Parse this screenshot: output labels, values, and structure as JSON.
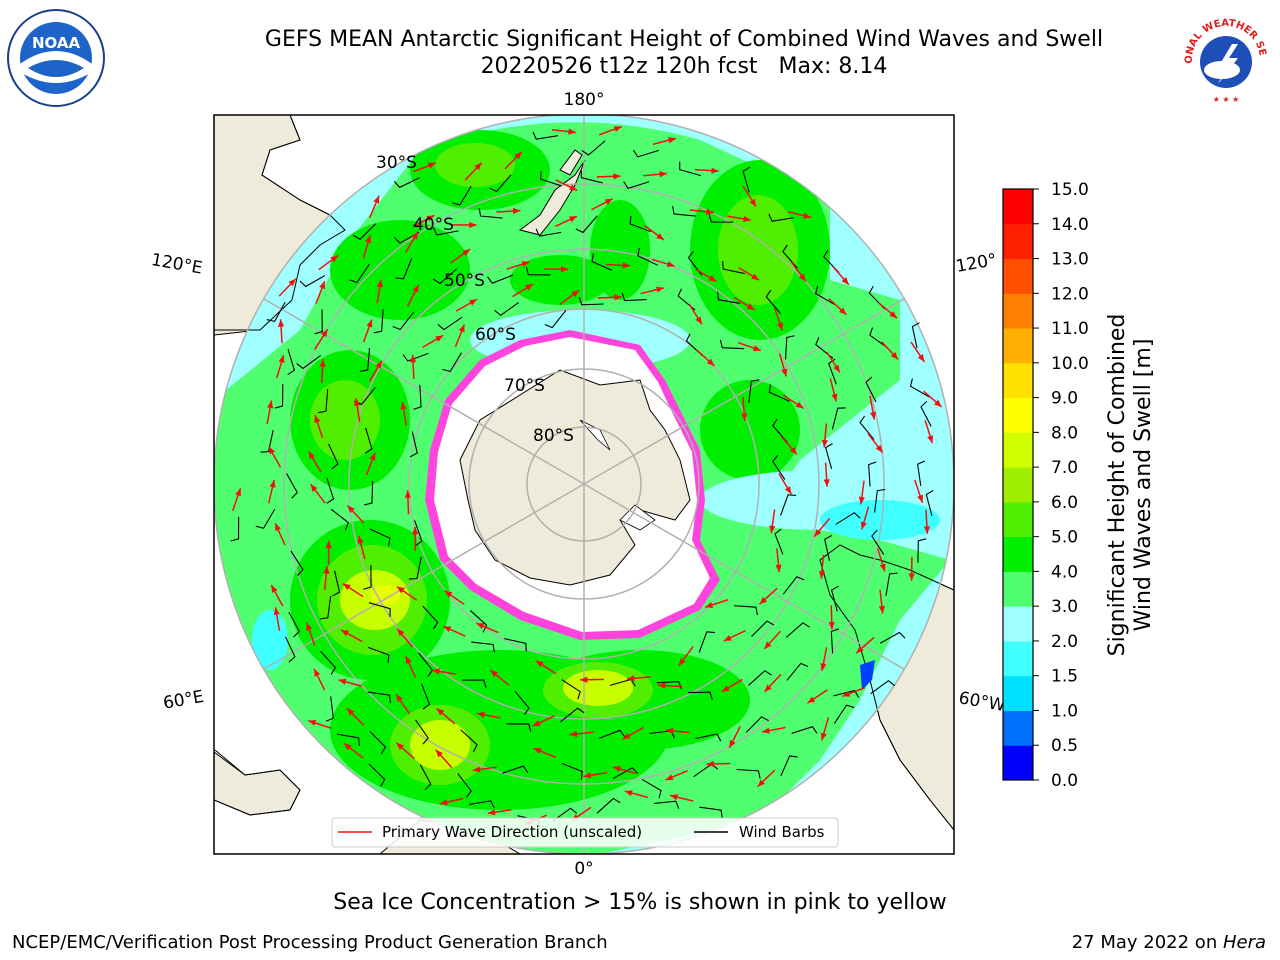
{
  "title": {
    "line1": "GEFS MEAN Antarctic Significant Height of Combined Wind Waves and Swell",
    "run": "20220526 t12z 120h fcst",
    "max_label": "Max: 8.14"
  },
  "map": {
    "projection": "south-polar-stereographic",
    "longitude_labels": [
      "180°",
      "120°E",
      "120°",
      "60°E",
      "60°W",
      "0°"
    ],
    "latitude_labels": [
      "30°S",
      "40°S",
      "50°S",
      "60°S",
      "70°S",
      "80°S"
    ],
    "colors": {
      "land": "#efebda",
      "ice_shelf": "#ffffff",
      "sea_ice_edge": "#ff44dd",
      "graticule": "#b0b0b0",
      "wave_arrow": "#ee1111",
      "wind_barb": "#000000"
    }
  },
  "legend": {
    "wave_direction": "Primary Wave Direction (unscaled)",
    "wind_barbs": "Wind Barbs"
  },
  "colorbar": {
    "label_line1": "Significant Height of Combined",
    "label_line2": "Wind Waves and Swell [m]",
    "ticks": [
      "0.0",
      "0.5",
      "1.0",
      "1.5",
      "2.0",
      "3.0",
      "4.0",
      "5.0",
      "6.0",
      "7.0",
      "8.0",
      "9.0",
      "10.0",
      "11.0",
      "12.0",
      "13.0",
      "14.0",
      "15.0"
    ],
    "colors": [
      "#0000ff",
      "#0070ff",
      "#00e0ff",
      "#40ffff",
      "#a0ffff",
      "#50ff70",
      "#00ee00",
      "#50ee00",
      "#a0ee00",
      "#d0ff00",
      "#ffff00",
      "#ffe000",
      "#ffb000",
      "#ff8000",
      "#ff5000",
      "#ff2000",
      "#ff0000"
    ]
  },
  "sea_ice_note": "Sea Ice Concentration > 15% is shown in pink to yellow",
  "footer": {
    "credit": "NCEP/EMC/Verification Post Processing Product Generation Branch",
    "date": "27 May 2022 on ",
    "host": "Hera"
  },
  "logos": {
    "noaa_text": "NOAA",
    "nws_text": "NATIONAL WEATHER SERVICE"
  }
}
